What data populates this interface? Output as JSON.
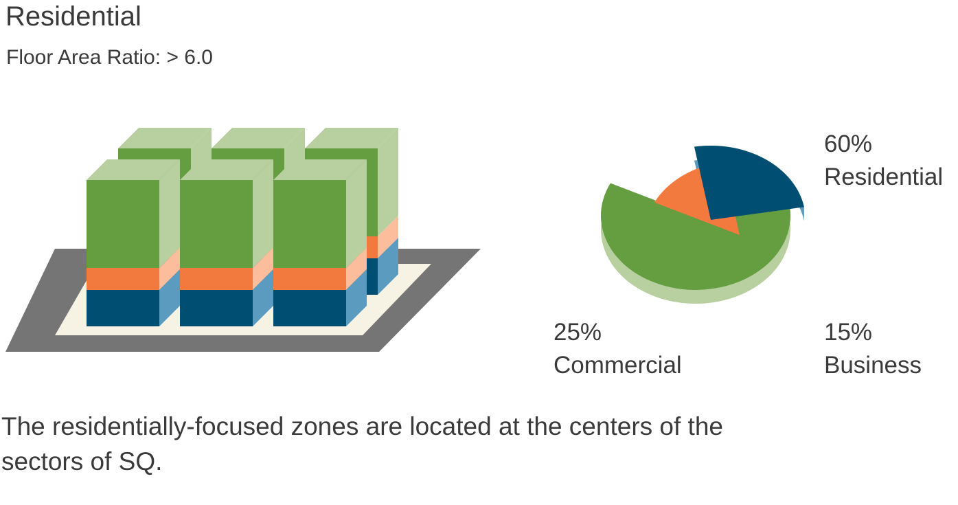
{
  "header": {
    "title": "Residential",
    "subtitle": "Floor Area Ratio: > 6.0"
  },
  "caption": "The residentially-focused zones are located at the centers of the sectors of SQ.",
  "colors": {
    "residential": "#659d41",
    "residential_side": "#b8cf9f",
    "commercial": "#004f72",
    "commercial_side": "#5a9bbf",
    "business": "#f37a3f",
    "business_side": "#fbbd9b",
    "plaza": "#757575",
    "plaza_inner": "#f6f3e4"
  },
  "chart_data": {
    "type": "pie",
    "title": "",
    "slices": [
      {
        "label": "Residential",
        "value": 60,
        "value_label": "60%"
      },
      {
        "label": "Business",
        "value": 15,
        "value_label": "15%"
      },
      {
        "label": "Commercial",
        "value": 25,
        "value_label": "25%"
      }
    ]
  }
}
